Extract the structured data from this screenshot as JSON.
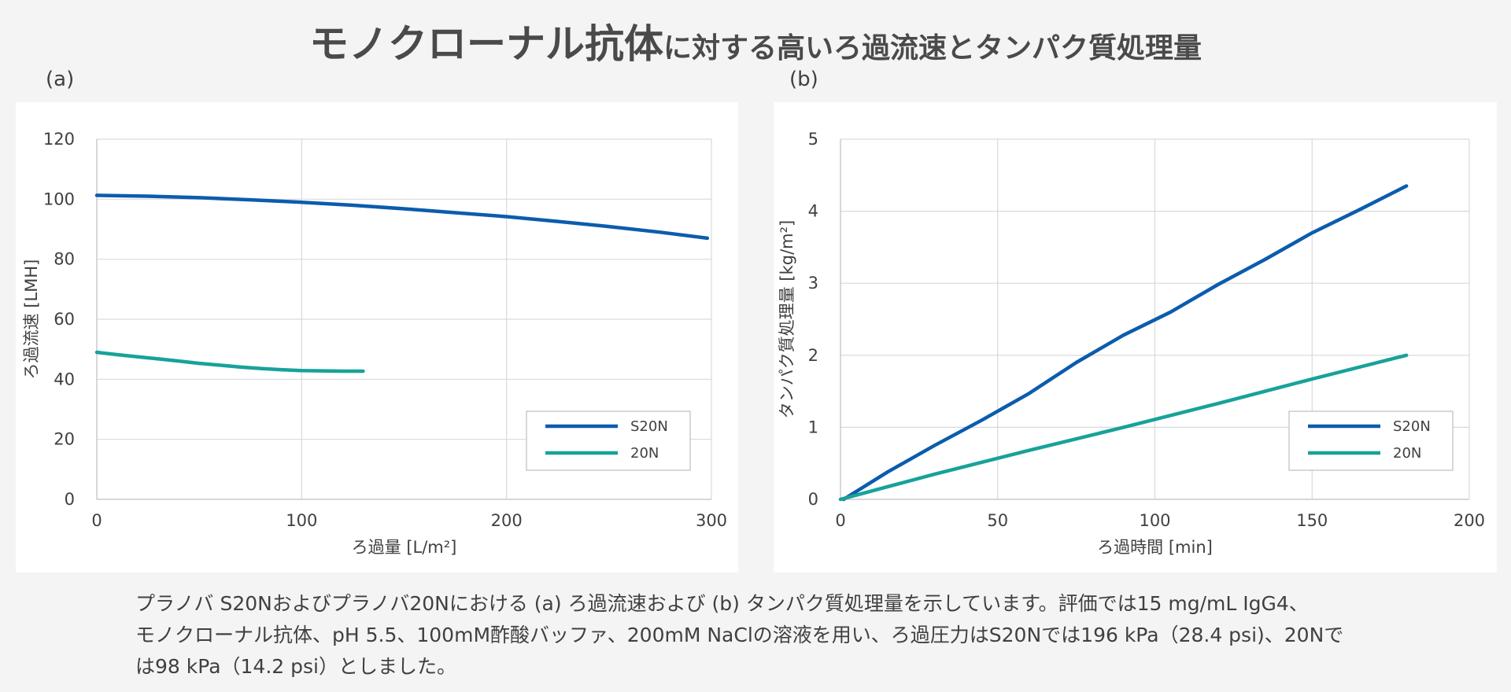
{
  "title": {
    "main": "モノクローナル抗体",
    "rest": "に対する高いろ過流速とタンパク質処理量"
  },
  "panels": [
    {
      "label": "(a)"
    },
    {
      "label": "(b)"
    }
  ],
  "caption": {
    "line1": "プラノバ S20Nおよびプラノバ20Nにおける (a) ろ過流速および (b) タンパク質処理量を示しています。評価では15 mg/mL IgG4、",
    "line2": "モノクローナル抗体、pH 5.5、100mM酢酸バッファ、200mM NaClの溶液を用い、ろ過圧力はS20Nでは196 kPa（28.4 psi)、20Nで",
    "line3": "は98 kPa（14.2 psi）としました。"
  },
  "colors": {
    "S20N": "#0b5cad",
    "20N": "#17a29a",
    "grid": "#d9d9d9",
    "axis": "#bfbfbf"
  },
  "chart_data": [
    {
      "type": "line",
      "panel": "(a)",
      "xlabel": "ろ過量 [L/m²]",
      "ylabel": "ろ過流速 [LMH]",
      "xlim": [
        0,
        300
      ],
      "ylim": [
        0,
        120
      ],
      "xticks": [
        0,
        100,
        200,
        300
      ],
      "yticks": [
        0,
        20,
        40,
        60,
        80,
        100,
        120
      ],
      "grid": true,
      "legend": "bottom-right",
      "series": [
        {
          "name": "S20N",
          "color": "#0b5cad",
          "x": [
            0,
            25,
            50,
            75,
            100,
            125,
            150,
            175,
            200,
            225,
            250,
            275,
            298
          ],
          "y": [
            101.3,
            101.0,
            100.5,
            99.8,
            99.0,
            98.0,
            96.8,
            95.5,
            94.2,
            92.6,
            90.9,
            89.0,
            87.0
          ]
        },
        {
          "name": "20N",
          "color": "#17a29a",
          "x": [
            0,
            10,
            20,
            30,
            40,
            50,
            60,
            70,
            80,
            90,
            100,
            110,
            120,
            130
          ],
          "y": [
            49.0,
            48.2,
            47.5,
            46.8,
            46.1,
            45.3,
            44.7,
            44.1,
            43.6,
            43.2,
            42.9,
            42.8,
            42.7,
            42.7
          ]
        }
      ]
    },
    {
      "type": "line",
      "panel": "(b)",
      "xlabel": "ろ過時間 [min]",
      "ylabel": "タンパク質処理量 [kg/m²]",
      "xlim": [
        0,
        200
      ],
      "ylim": [
        0,
        5
      ],
      "xticks": [
        0,
        50,
        100,
        150,
        200
      ],
      "yticks": [
        0,
        1,
        2,
        3,
        4,
        5
      ],
      "grid": true,
      "legend": "bottom-right",
      "series": [
        {
          "name": "S20N",
          "color": "#0b5cad",
          "x": [
            1,
            15,
            30,
            45,
            60,
            75,
            90,
            105,
            120,
            135,
            150,
            165,
            180
          ],
          "y": [
            0.0,
            0.38,
            0.75,
            1.1,
            1.47,
            1.9,
            2.28,
            2.6,
            2.98,
            3.33,
            3.7,
            4.02,
            4.35
          ]
        },
        {
          "name": "20N",
          "color": "#17a29a",
          "x": [
            0,
            30,
            60,
            90,
            120,
            150,
            180
          ],
          "y": [
            0.0,
            0.35,
            0.68,
            1.0,
            1.33,
            1.67,
            2.0
          ]
        }
      ]
    }
  ]
}
